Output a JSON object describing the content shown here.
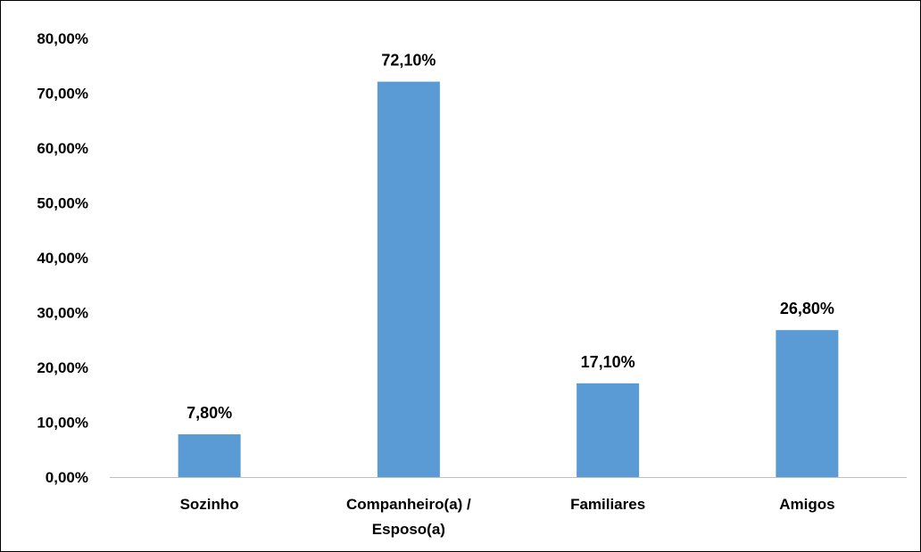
{
  "chart_data": {
    "type": "bar",
    "categories": [
      "Sozinho",
      "Companheiro(a) / Esposo(a)",
      "Familiares",
      "Amigos"
    ],
    "category_lines": [
      [
        "Sozinho"
      ],
      [
        "Companheiro(a) /",
        "Esposo(a)"
      ],
      [
        "Familiares"
      ],
      [
        "Amigos"
      ]
    ],
    "values": [
      7.8,
      72.1,
      17.1,
      26.8
    ],
    "data_labels": [
      "7,80%",
      "72,10%",
      "17,10%",
      "26,80%"
    ],
    "ylim": [
      0,
      80
    ],
    "yticks": [
      0,
      10,
      20,
      30,
      40,
      50,
      60,
      70,
      80
    ],
    "ytick_labels": [
      "0,00%",
      "10,00%",
      "20,00%",
      "30,00%",
      "40,00%",
      "50,00%",
      "60,00%",
      "70,00%",
      "80,00%"
    ],
    "title": "",
    "xlabel": "",
    "ylabel": "",
    "grid": false,
    "legend": "none",
    "bar_color": "#5b9bd5",
    "axis_color": "#bfbfbf"
  }
}
